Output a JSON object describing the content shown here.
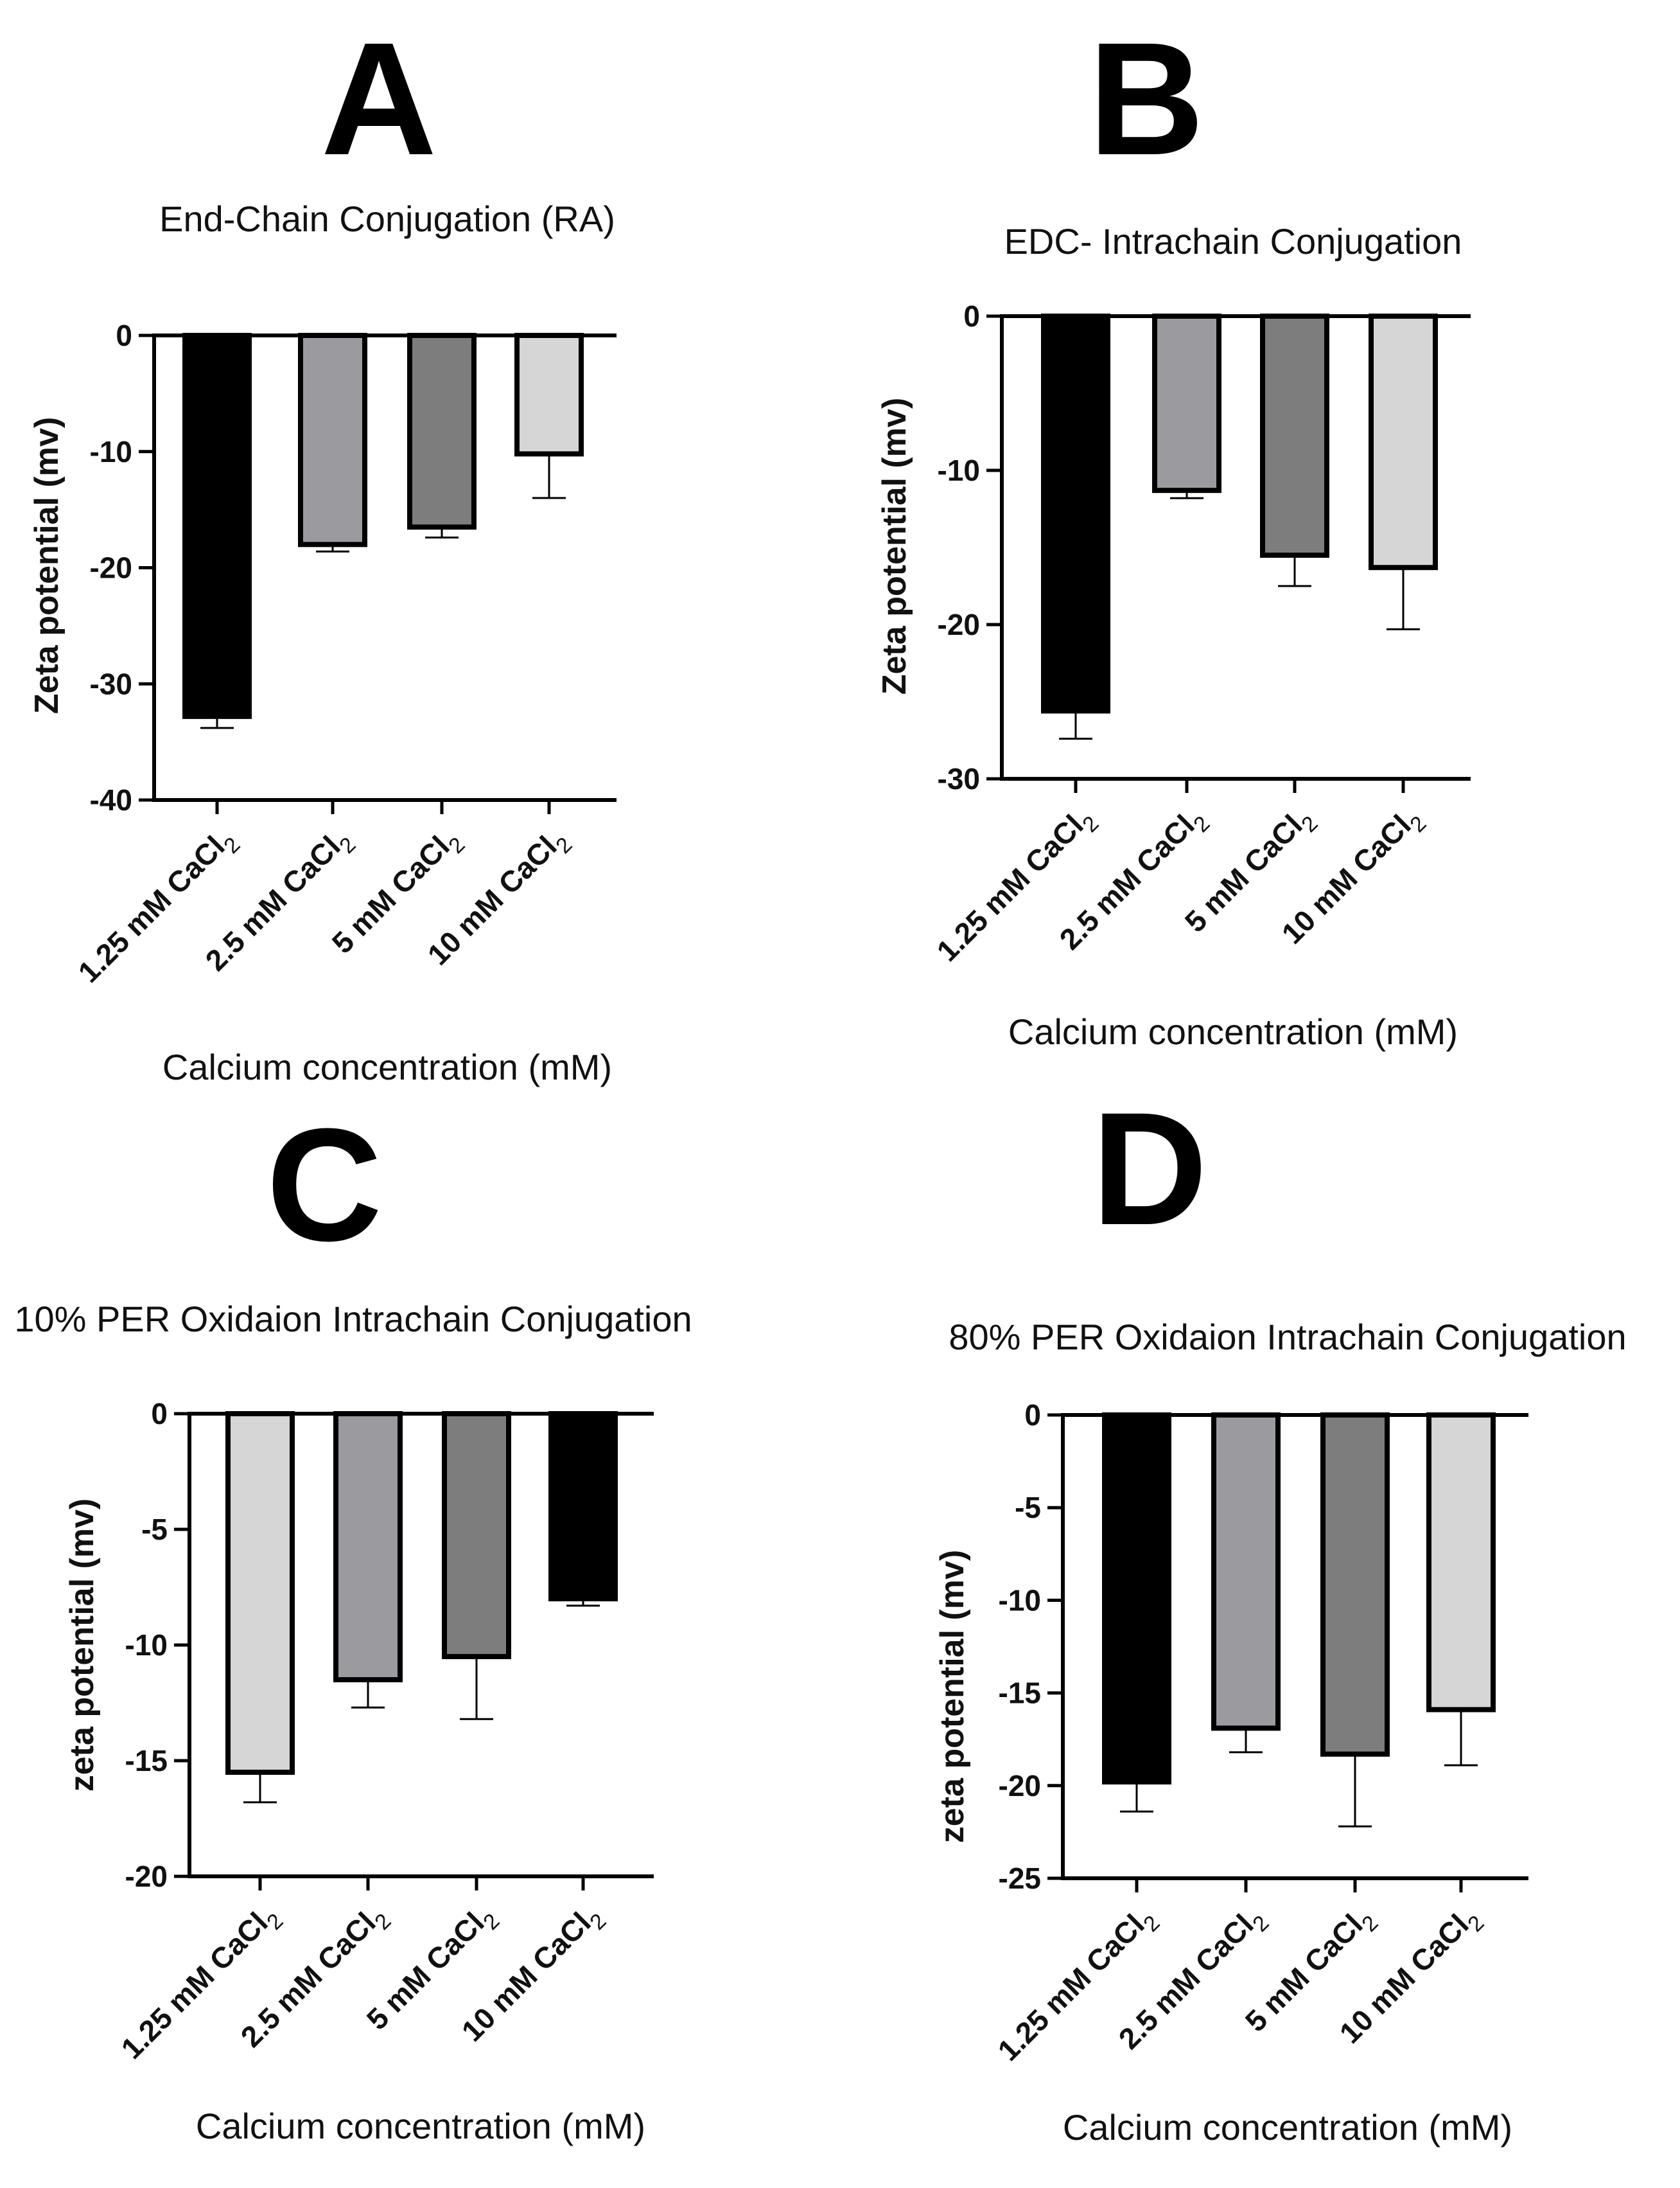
{
  "figure": {
    "panels": [
      "A",
      "B",
      "C",
      "D"
    ]
  },
  "chart_data": [
    {
      "panel": "A",
      "type": "bar",
      "title": "End-Chain Conjugation (RA)",
      "xlabel": "Calcium concentration (mM)",
      "ylabel": "Zeta potential (mv)",
      "categories": [
        {
          "main": "1.25 mM CaCl",
          "sub": "2"
        },
        {
          "main": "2.5 mM CaCl",
          "sub": "2"
        },
        {
          "main": "5 mM CaCl",
          "sub": "2"
        },
        {
          "main": "10 mM CaCl",
          "sub": "2"
        }
      ],
      "values": [
        -32.8,
        -18.0,
        -16.5,
        -10.2
      ],
      "errors": [
        1.0,
        0.6,
        0.9,
        3.8
      ],
      "colors": [
        "#000000",
        "#9b9b9f",
        "#7d7d7d",
        "#d6d6d6"
      ],
      "ylim": [
        -40,
        0
      ],
      "yticks": [
        0,
        -10,
        -20,
        -30,
        -40
      ],
      "ytick_labels": [
        "0",
        "-10",
        "-20",
        "-30",
        "-40"
      ]
    },
    {
      "panel": "B",
      "type": "bar",
      "title": "EDC- Intrachain Conjugation",
      "xlabel": "Calcium concentration (mM)",
      "ylabel": "Zeta potential (mv)",
      "categories": [
        {
          "main": "1.25 mM CaCl",
          "sub": "2"
        },
        {
          "main": "2.5 mM CaCl",
          "sub": "2"
        },
        {
          "main": "5 mM CaCl",
          "sub": "2"
        },
        {
          "main": "10 mM CaCl",
          "sub": "2"
        }
      ],
      "values": [
        -25.6,
        -11.3,
        -15.5,
        -16.3
      ],
      "errors": [
        1.8,
        0.5,
        2.0,
        4.0
      ],
      "colors": [
        "#000000",
        "#9b9b9f",
        "#7d7d7d",
        "#d6d6d6"
      ],
      "ylim": [
        -30,
        0
      ],
      "yticks": [
        0,
        -10,
        -20,
        -30
      ],
      "ytick_labels": [
        "0",
        "-10",
        "-20",
        "-30"
      ]
    },
    {
      "panel": "C",
      "type": "bar",
      "title": "10% PER Oxidaion Intrachain Conjugation",
      "xlabel": "Calcium concentration (mM)",
      "ylabel": "zeta potential (mv)",
      "categories": [
        {
          "main": "1.25 mM CaCl",
          "sub": "2"
        },
        {
          "main": "2.5 mM CaCl",
          "sub": "2"
        },
        {
          "main": "5 mM CaCl",
          "sub": "2"
        },
        {
          "main": "10 mM CaCl",
          "sub": "2"
        }
      ],
      "values": [
        -15.5,
        -11.5,
        -10.5,
        -8.0
      ],
      "errors": [
        1.3,
        1.2,
        2.7,
        0.3
      ],
      "colors": [
        "#d6d6d6",
        "#9b9b9f",
        "#7d7d7d",
        "#000000"
      ],
      "ylim": [
        -20,
        0
      ],
      "yticks": [
        0,
        -5,
        -10,
        -15,
        -20
      ],
      "ytick_labels": [
        "0",
        "-5",
        "-10",
        "-15",
        "-20"
      ]
    },
    {
      "panel": "D",
      "type": "bar",
      "title": "80% PER Oxidaion Intrachain Conjugation",
      "xlabel": "Calcium concentration (mM)",
      "ylabel": "zeta potential (mv)",
      "categories": [
        {
          "main": "1.25 mM CaCl",
          "sub": "2"
        },
        {
          "main": "2.5 mM CaCl",
          "sub": "2"
        },
        {
          "main": "5 mM CaCl",
          "sub": "2"
        },
        {
          "main": "10 mM CaCl",
          "sub": "2"
        }
      ],
      "values": [
        -19.8,
        -16.9,
        -18.3,
        -15.9
      ],
      "errors": [
        1.6,
        1.3,
        3.9,
        3.0
      ],
      "colors": [
        "#000000",
        "#9b9b9f",
        "#7d7d7d",
        "#d6d6d6"
      ],
      "ylim": [
        -25,
        0
      ],
      "yticks": [
        0,
        -5,
        -10,
        -15,
        -20,
        -25
      ],
      "ytick_labels": [
        "0",
        "-5",
        "-10",
        "-15",
        "-20",
        "-25"
      ]
    }
  ]
}
